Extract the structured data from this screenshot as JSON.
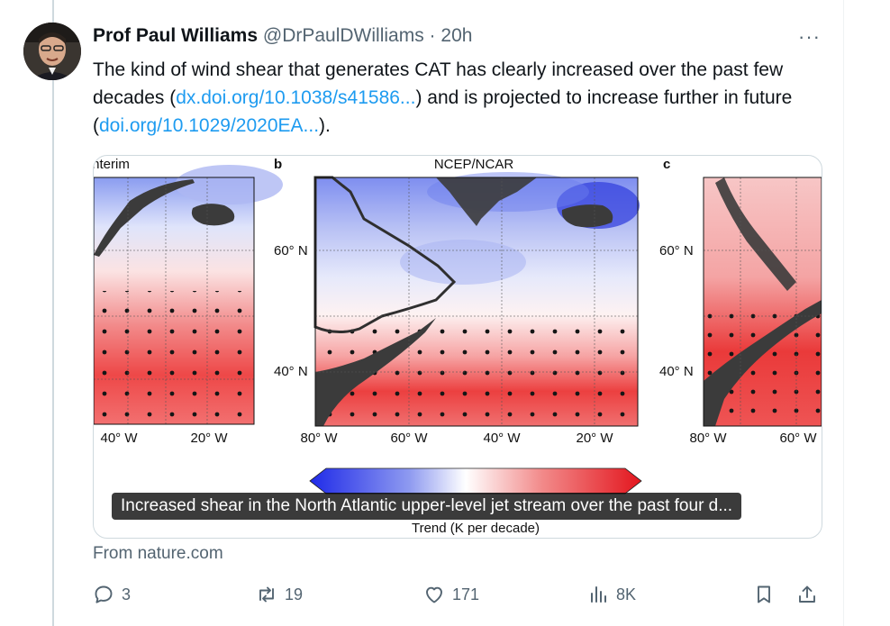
{
  "author": {
    "name": "Prof Paul Williams",
    "handle": "@DrPaulDWilliams",
    "separator": "·",
    "time": "20h"
  },
  "more_label": "···",
  "tweet": {
    "text_1": "The kind of wind shear that generates CAT has clearly increased over the past few decades (",
    "link_1": "dx.doi.org/10.1038/s41586...",
    "text_2": ") and is projected to increase further in future (",
    "link_2": "doi.org/10.1029/2020EA...",
    "text_3": ")."
  },
  "card": {
    "panel_a_title": "Interim",
    "panel_b_letter": "b",
    "panel_b_title": "NCEP/NCAR",
    "panel_c_letter": "c",
    "lat_60": "60° N",
    "lat_40": "40° N",
    "a_lon": [
      "40° W",
      "20° W"
    ],
    "b_lon": [
      "80° W",
      "60° W",
      "40° W",
      "20° W"
    ],
    "c_lon": [
      "80° W",
      "60° W"
    ],
    "colorbar_label": "Trend (K per decade)",
    "caption": "Increased shear in the North Atlantic upper-level jet stream over the past four d..."
  },
  "source": "From nature.com",
  "actions": {
    "replies": "3",
    "reposts": "19",
    "likes": "171",
    "views": "8K"
  },
  "colors": {
    "link": "#1d9bf0",
    "muted": "#536471",
    "trend_negative": "#2b3be0",
    "trend_positive": "#e8232b"
  }
}
